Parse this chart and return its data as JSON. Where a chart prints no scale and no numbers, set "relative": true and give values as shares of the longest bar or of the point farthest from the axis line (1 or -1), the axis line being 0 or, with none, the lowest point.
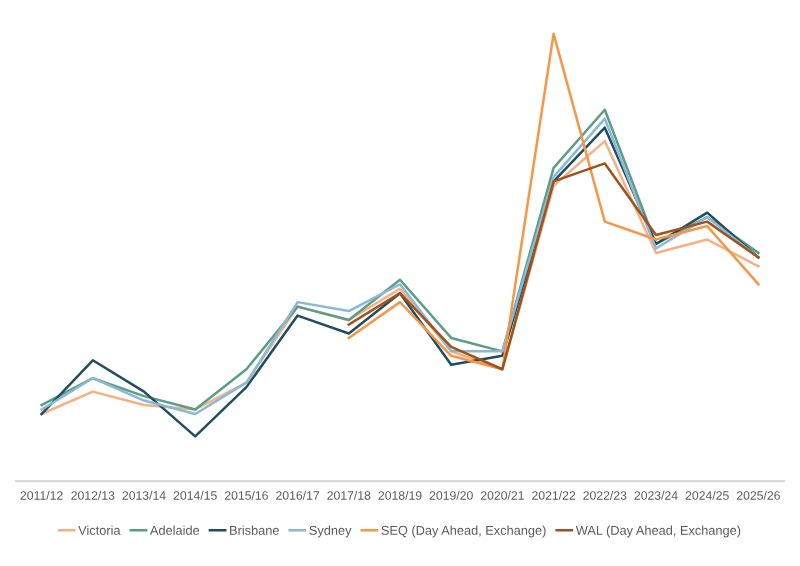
{
  "chart_data": {
    "type": "line",
    "relative": true,
    "legend": "bottom",
    "categories": [
      "2011/12",
      "2012/13",
      "2013/14",
      "2014/15",
      "2015/16",
      "2016/17",
      "2017/18",
      "2018/19",
      "2019/20",
      "2020/21",
      "2021/22",
      "2022/23",
      "2023/24",
      "2024/25",
      "2025/26"
    ],
    "series": [
      {
        "name": "Victoria",
        "color": "#f4b183",
        "values": [
          0.15,
          0.2,
          0.17,
          0.16,
          0.22,
          0.39,
          0.36,
          0.43,
          0.29,
          0.25,
          0.66,
          0.76,
          0.51,
          0.54,
          0.48
        ]
      },
      {
        "name": "Adelaide",
        "color": "#5b9e84",
        "values": [
          0.17,
          0.23,
          0.19,
          0.16,
          0.25,
          0.39,
          0.36,
          0.45,
          0.32,
          0.29,
          0.7,
          0.83,
          0.53,
          0.59,
          0.51
        ]
      },
      {
        "name": "Brisbane",
        "color": "#1f4e5f",
        "values": [
          0.15,
          0.27,
          0.2,
          0.1,
          0.21,
          0.37,
          0.33,
          0.42,
          0.26,
          0.28,
          0.67,
          0.79,
          0.53,
          0.6,
          0.5
        ]
      },
      {
        "name": "Sydney",
        "color": "#8bb8d9",
        "values": [
          0.16,
          0.23,
          0.18,
          0.15,
          0.22,
          0.4,
          0.38,
          0.44,
          0.29,
          0.29,
          0.68,
          0.81,
          0.52,
          0.59,
          0.5
        ]
      },
      {
        "name": "SEQ (Day Ahead, Exchange)",
        "color": "#f79646",
        "values": [
          null,
          null,
          null,
          null,
          null,
          null,
          0.32,
          0.4,
          0.28,
          0.25,
          1,
          0.58,
          0.54,
          0.57,
          0.44
        ]
      },
      {
        "name": "WAL (Day Ahead, Exchange)",
        "color": "#a0521d",
        "values": [
          null,
          null,
          null,
          null,
          null,
          null,
          0.35,
          0.42,
          0.3,
          0.25,
          0.67,
          0.71,
          0.55,
          0.58,
          0.5
        ]
      }
    ]
  }
}
